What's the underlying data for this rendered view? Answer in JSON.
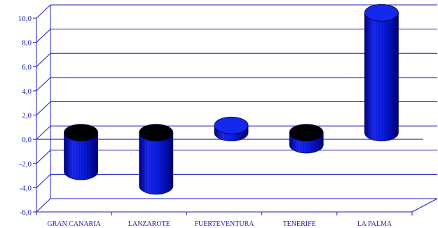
{
  "chart_data": {
    "type": "bar",
    "style": "3d-cylinder",
    "categories": [
      "GRAN CANARIA",
      "LANZAROTE",
      "FUERTEVENTURA",
      "TENERIFE",
      "LA PALMA"
    ],
    "values": [
      -3.2,
      -4.4,
      0.6,
      -1.0,
      9.9
    ],
    "yticks": [
      "-6,0",
      "-4,0",
      "-2,0",
      "0,0",
      "2,0",
      "4,0",
      "6,0",
      "8,0",
      "10,0"
    ],
    "ylim": [
      -6,
      10
    ],
    "grid": true,
    "title": "",
    "xlabel": "",
    "ylabel": "",
    "colors": {
      "bar": "#0a1ee6",
      "bar_dark": "#00008c",
      "top": "#000000",
      "axis": "#1c1cb8",
      "text": "#1c1cb8"
    }
  }
}
